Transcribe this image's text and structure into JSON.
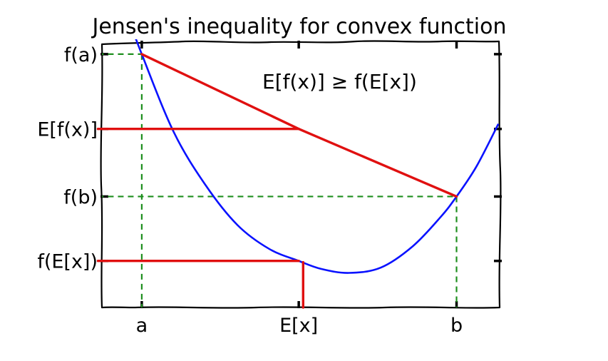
{
  "chart_data": {
    "type": "line",
    "title": "Jensen's inequality for convex function",
    "annotation": "E[f(x)] ≥ f(E[x])",
    "grid": false,
    "xlim": [
      0,
      10
    ],
    "ylim": [
      0,
      10
    ],
    "x_ticks": [
      {
        "label": "a",
        "value": 1.0
      },
      {
        "label": "E[x]",
        "value": 4.94
      },
      {
        "label": "b",
        "value": 8.9
      }
    ],
    "y_ticks": [
      {
        "label": "f(a)",
        "value": 9.52
      },
      {
        "label": "E[f(x)]",
        "value": 6.71
      },
      {
        "label": "f(b)",
        "value": 4.17
      },
      {
        "label": "f(E[x])",
        "value": 1.75
      }
    ],
    "series": [
      {
        "style": "convex-curve",
        "color": "#0a12ff",
        "x": [
          0.3,
          1.0,
          1.8,
          2.6,
          3.4,
          4.2,
          4.94,
          5.5,
          6.2,
          7.0,
          7.8,
          8.5,
          8.9,
          9.4,
          9.95
        ],
        "y": [
          12.3,
          9.52,
          6.6,
          4.6,
          3.1,
          2.2,
          1.75,
          1.45,
          1.3,
          1.5,
          2.3,
          3.4,
          4.17,
          5.3,
          6.9
        ]
      },
      {
        "style": "chord",
        "color": "#e01010",
        "x": [
          1.0,
          4.94,
          8.9
        ],
        "y": [
          9.52,
          6.71,
          4.17
        ]
      }
    ],
    "red_segments": [
      {
        "x": [
          -0.1,
          4.94
        ],
        "y": [
          6.71,
          6.71
        ]
      },
      {
        "x": [
          -0.1,
          4.94
        ],
        "y": [
          1.75,
          1.75
        ]
      },
      {
        "x": [
          5.05,
          5.05
        ],
        "y": [
          1.7,
          0.0
        ]
      }
    ],
    "guides": [
      {
        "x": [
          1.0,
          1.0
        ],
        "y": [
          9.52,
          0
        ]
      },
      {
        "x": [
          -0.1,
          1.0
        ],
        "y": [
          9.52,
          9.52
        ]
      },
      {
        "x": [
          -0.1,
          8.9
        ],
        "y": [
          4.17,
          4.17
        ]
      },
      {
        "x": [
          8.9,
          8.9
        ],
        "y": [
          4.17,
          0
        ]
      }
    ],
    "colors": {
      "curve": "#0a12ff",
      "chord": "#e01010",
      "guide": "#1e8f1e"
    }
  }
}
